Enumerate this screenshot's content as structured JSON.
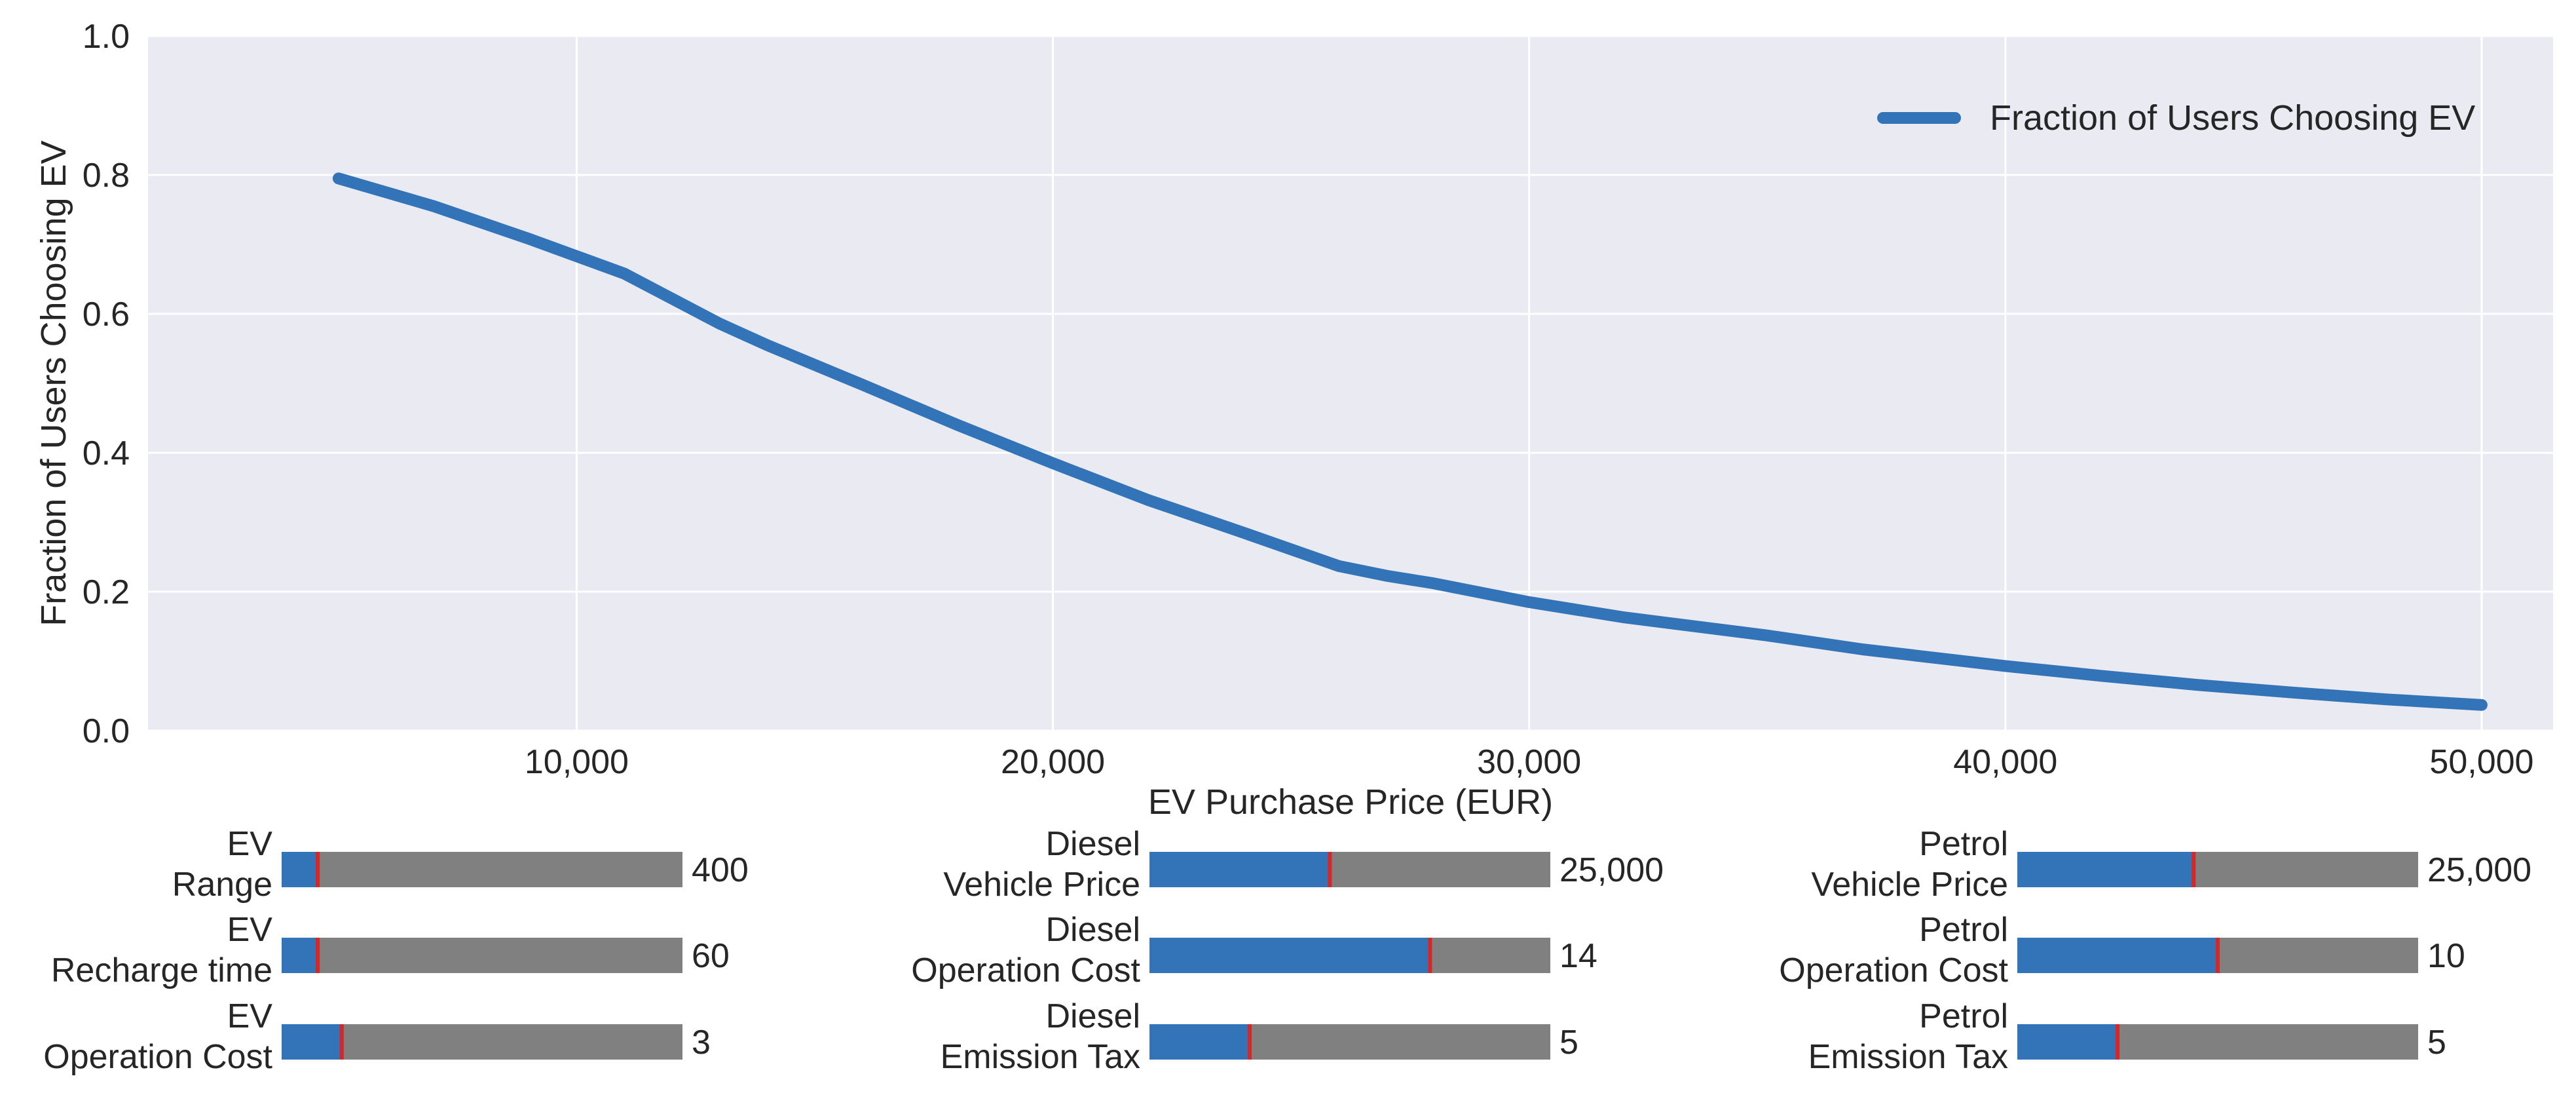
{
  "colors": {
    "background": "#eaeaf2",
    "grid": "#ffffff",
    "line": "#3274b7",
    "slider_fill": "#3274b7",
    "slider_track": "#808080",
    "slider_marker": "#d62728"
  },
  "chart_data": {
    "type": "line",
    "title": "",
    "xlabel": "EV Purchase Price (EUR)",
    "ylabel": "Fraction of Users Choosing EV",
    "xlim": [
      1000,
      51500
    ],
    "ylim": [
      0,
      1.0
    ],
    "x_ticks": [
      10000,
      20000,
      30000,
      40000,
      50000
    ],
    "x_tick_labels": [
      "10,000",
      "20,000",
      "30,000",
      "40,000",
      "50,000"
    ],
    "y_ticks": [
      0.0,
      0.2,
      0.4,
      0.6,
      0.8,
      1.0
    ],
    "y_tick_labels": [
      "0.0",
      "0.2",
      "0.4",
      "0.6",
      "0.8",
      "1.0"
    ],
    "grid": true,
    "legend_position": "top-right",
    "series": [
      {
        "name": "Fraction of Users Choosing EV",
        "x": [
          5000,
          7000,
          9000,
          11000,
          13000,
          14000,
          16000,
          18000,
          20000,
          22000,
          24000,
          26000,
          27000,
          28000,
          30000,
          32000,
          35000,
          37000,
          40000,
          42000,
          44000,
          46000,
          48000,
          50000
        ],
        "y": [
          0.795,
          0.755,
          0.708,
          0.658,
          0.586,
          0.555,
          0.498,
          0.44,
          0.385,
          0.332,
          0.285,
          0.237,
          0.223,
          0.212,
          0.185,
          0.163,
          0.137,
          0.117,
          0.093,
          0.079,
          0.066,
          0.055,
          0.045,
          0.037
        ]
      }
    ]
  },
  "sliders": [
    {
      "label_line1": "EV",
      "label_line2": "Range",
      "value": "400",
      "fraction": 0.09
    },
    {
      "label_line1": "EV",
      "label_line2": "Recharge  time",
      "value": "60",
      "fraction": 0.09
    },
    {
      "label_line1": "EV",
      "label_line2": "Operation Cost",
      "value": "3",
      "fraction": 0.15
    },
    {
      "label_line1": "Diesel",
      "label_line2": "Vehicle Price",
      "value": "25,000",
      "fraction": 0.45
    },
    {
      "label_line1": "Diesel",
      "label_line2": "Operation Cost",
      "value": "14",
      "fraction": 0.7
    },
    {
      "label_line1": "Diesel",
      "label_line2": "Emission Tax",
      "value": "5",
      "fraction": 0.25
    },
    {
      "label_line1": "Petrol",
      "label_line2": "Vehicle Price",
      "value": "25,000",
      "fraction": 0.44
    },
    {
      "label_line1": "Petrol",
      "label_line2": "Operation Cost",
      "value": "10",
      "fraction": 0.5
    },
    {
      "label_line1": "Petrol",
      "label_line2": "Emission Tax",
      "value": "5",
      "fraction": 0.25
    }
  ]
}
